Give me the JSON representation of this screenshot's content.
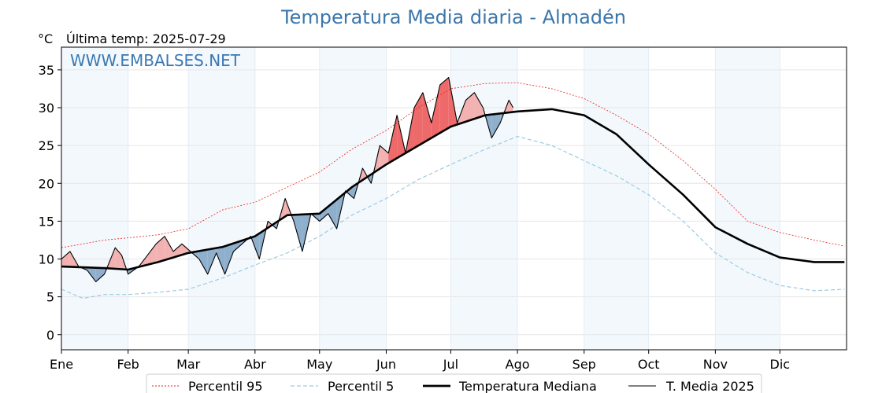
{
  "chart_data": {
    "type": "line",
    "title": "Temperatura Media diaria - Almadén",
    "unit_label": "°C",
    "last_temp_label": "Última temp: 2025-07-29",
    "watermark": "WWW.EMBALSES.NET",
    "ylim": [
      -2,
      38
    ],
    "yticks": [
      0,
      5,
      10,
      15,
      20,
      25,
      30,
      35
    ],
    "xlim_day": [
      0,
      365
    ],
    "months": [
      "Ene",
      "Feb",
      "Mar",
      "Abr",
      "May",
      "Jun",
      "Jul",
      "Ago",
      "Sep",
      "Oct",
      "Nov",
      "Dic"
    ],
    "month_start_day": [
      0,
      31,
      59,
      90,
      120,
      151,
      181,
      212,
      243,
      273,
      304,
      334
    ],
    "grid": true,
    "legend_position": "bottom",
    "colors": {
      "p95": "#e8221c",
      "p5": "#9ccbe0",
      "median": "#000000",
      "current": "#000000",
      "above": "#f3b2b2",
      "above_strong": "#ee6a6a",
      "below": "#8fb0cd",
      "band": "#f3f8fc",
      "title": "#3b76ab"
    },
    "series": [
      {
        "name": "Percentil 95",
        "key": "p95",
        "x": [
          0,
          10,
          20,
          31,
          45,
          59,
          75,
          90,
          105,
          120,
          135,
          151,
          166,
          181,
          197,
          212,
          228,
          243,
          258,
          273,
          289,
          304,
          319,
          334,
          350,
          364
        ],
        "y": [
          11.5,
          12,
          12.5,
          12.8,
          13.2,
          14,
          16.5,
          17.5,
          19.5,
          21.5,
          24.5,
          27,
          30,
          32.5,
          33.2,
          33.3,
          32.5,
          31.2,
          29,
          26.5,
          23,
          19.2,
          15,
          13.5,
          12.5,
          11.7
        ]
      },
      {
        "name": "Percentil 5",
        "key": "p5",
        "x": [
          0,
          10,
          20,
          31,
          45,
          59,
          75,
          90,
          105,
          120,
          135,
          151,
          166,
          181,
          197,
          212,
          228,
          243,
          258,
          273,
          289,
          304,
          319,
          334,
          350,
          364
        ],
        "y": [
          6,
          4.8,
          5.3,
          5.3,
          5.6,
          6,
          7.5,
          9.2,
          10.8,
          13,
          15.8,
          18,
          20.5,
          22.5,
          24.5,
          26.2,
          25,
          23,
          21,
          18.5,
          15,
          10.8,
          8.2,
          6.5,
          5.8,
          6
        ]
      },
      {
        "name": "Temperatura Mediana",
        "key": "median",
        "x": [
          0,
          10,
          20,
          31,
          45,
          59,
          75,
          90,
          105,
          120,
          135,
          151,
          166,
          181,
          197,
          212,
          228,
          243,
          258,
          273,
          289,
          304,
          319,
          334,
          350,
          364
        ],
        "y": [
          9,
          8.9,
          8.8,
          8.6,
          9.6,
          10.8,
          11.6,
          13,
          15.8,
          16,
          19.5,
          22.5,
          25,
          27.5,
          29,
          29.5,
          29.8,
          29,
          26.5,
          22.5,
          18.5,
          14.2,
          12,
          10.2,
          9.6,
          9.6
        ]
      },
      {
        "name": "T. Media 2025",
        "key": "current",
        "x": [
          0,
          4,
          8,
          12,
          16,
          20,
          25,
          28,
          31,
          36,
          40,
          44,
          48,
          52,
          56,
          60,
          64,
          68,
          72,
          76,
          80,
          84,
          88,
          92,
          96,
          100,
          104,
          108,
          112,
          116,
          120,
          124,
          128,
          132,
          136,
          140,
          144,
          148,
          152,
          156,
          160,
          164,
          168,
          172,
          176,
          180,
          184,
          188,
          192,
          196,
          200,
          204,
          208,
          210
        ],
        "y": [
          10,
          11,
          9,
          8.5,
          7,
          8,
          11.5,
          10.5,
          8,
          9,
          10.5,
          12,
          13,
          11,
          12,
          11,
          10,
          8,
          10.8,
          8,
          11,
          12,
          13,
          10,
          15,
          14,
          18,
          15,
          11,
          16,
          15,
          16,
          14,
          19,
          18,
          22,
          20,
          25,
          24,
          29,
          24,
          30,
          32,
          28,
          33,
          34,
          28,
          31,
          32,
          30,
          26,
          28,
          31,
          30
        ]
      }
    ]
  }
}
